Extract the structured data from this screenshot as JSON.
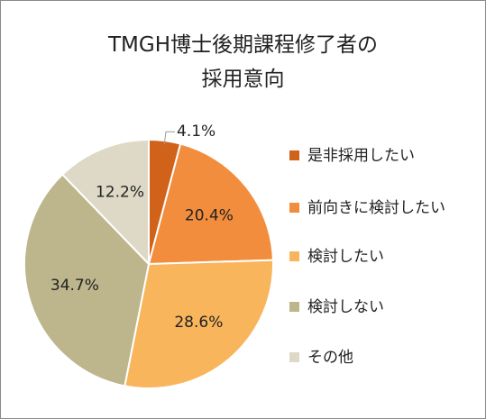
{
  "chart_data": {
    "type": "pie",
    "title": "TMGH博士後期課程修了者の\n採用意向",
    "categories": [
      "是非採用したい",
      "前向きに検討したい",
      "検討したい",
      "検討しない",
      "その他"
    ],
    "values": [
      4.1,
      20.4,
      28.6,
      34.7,
      12.2
    ],
    "value_labels": [
      "4.1%",
      "20.4%",
      "28.6%",
      "34.7%",
      "12.2%"
    ],
    "colors": [
      "#d0621a",
      "#f28d3d",
      "#f9b55c",
      "#bdb58c",
      "#ddd9c6"
    ],
    "legend": "right"
  }
}
